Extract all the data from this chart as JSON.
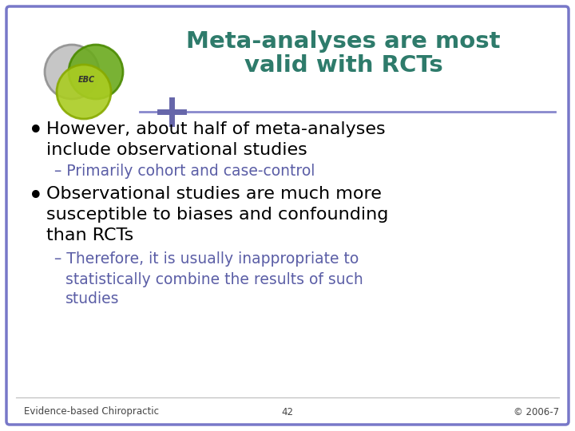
{
  "title_line1": "Meta-analyses are most",
  "title_line2": "valid with RCTs",
  "title_color": "#2E7B6B",
  "bullet1_text1": "However, about half of meta-analyses",
  "bullet1_text2": "include observational studies",
  "sub1_text": "– Primarily cohort and case-control",
  "sub1_color": "#5B5EA6",
  "bullet2_text1": "Observational studies are much more",
  "bullet2_text2": "susceptible to biases and confounding",
  "bullet2_text3": "than RCTs",
  "sub2_text1": "– Therefore, it is usually inappropriate to",
  "sub2_text2": "statistically combine the results of such",
  "sub2_text3": "studies",
  "sub2_color": "#5B5EA6",
  "footer_left": "Evidence-based Chiropractic",
  "footer_center": "42",
  "footer_right": "© 2006-7",
  "bg_color": "#FFFFFF",
  "border_color": "#7878C8",
  "bullet_color": "#000000",
  "body_text_color": "#000000",
  "title_font_size": 21,
  "body_font_size": 16,
  "sub_font_size": 13.5,
  "footer_font_size": 8.5
}
